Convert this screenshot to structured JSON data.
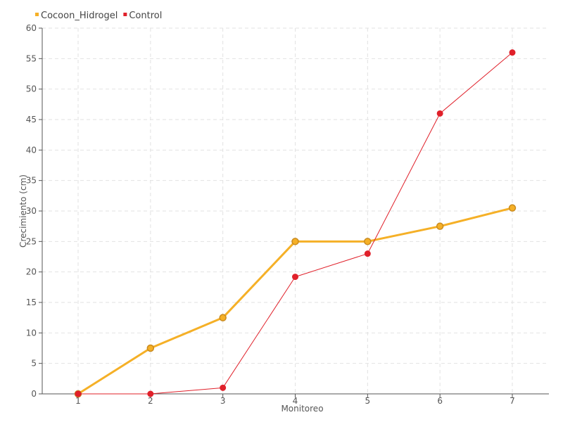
{
  "chart_data": {
    "type": "line",
    "title": "",
    "xlabel": "Monitoreo",
    "ylabel": "Crecimiento (cm)",
    "categories": [
      "1",
      "2",
      "3",
      "4",
      "5",
      "6",
      "7"
    ],
    "ylim": [
      0,
      60
    ],
    "yticks": [
      0,
      5,
      10,
      15,
      20,
      25,
      30,
      35,
      40,
      45,
      50,
      55,
      60
    ],
    "grid": true,
    "legend_position": "top-left",
    "series": [
      {
        "name": "Cocoon_Hidrogel",
        "color": "#f5b027",
        "values": [
          0,
          7.5,
          12.5,
          25,
          25,
          27.5,
          30.5
        ]
      },
      {
        "name": "Control",
        "color": "#e0202a",
        "values": [
          0,
          0,
          1,
          19.2,
          23,
          46,
          56
        ]
      }
    ]
  }
}
